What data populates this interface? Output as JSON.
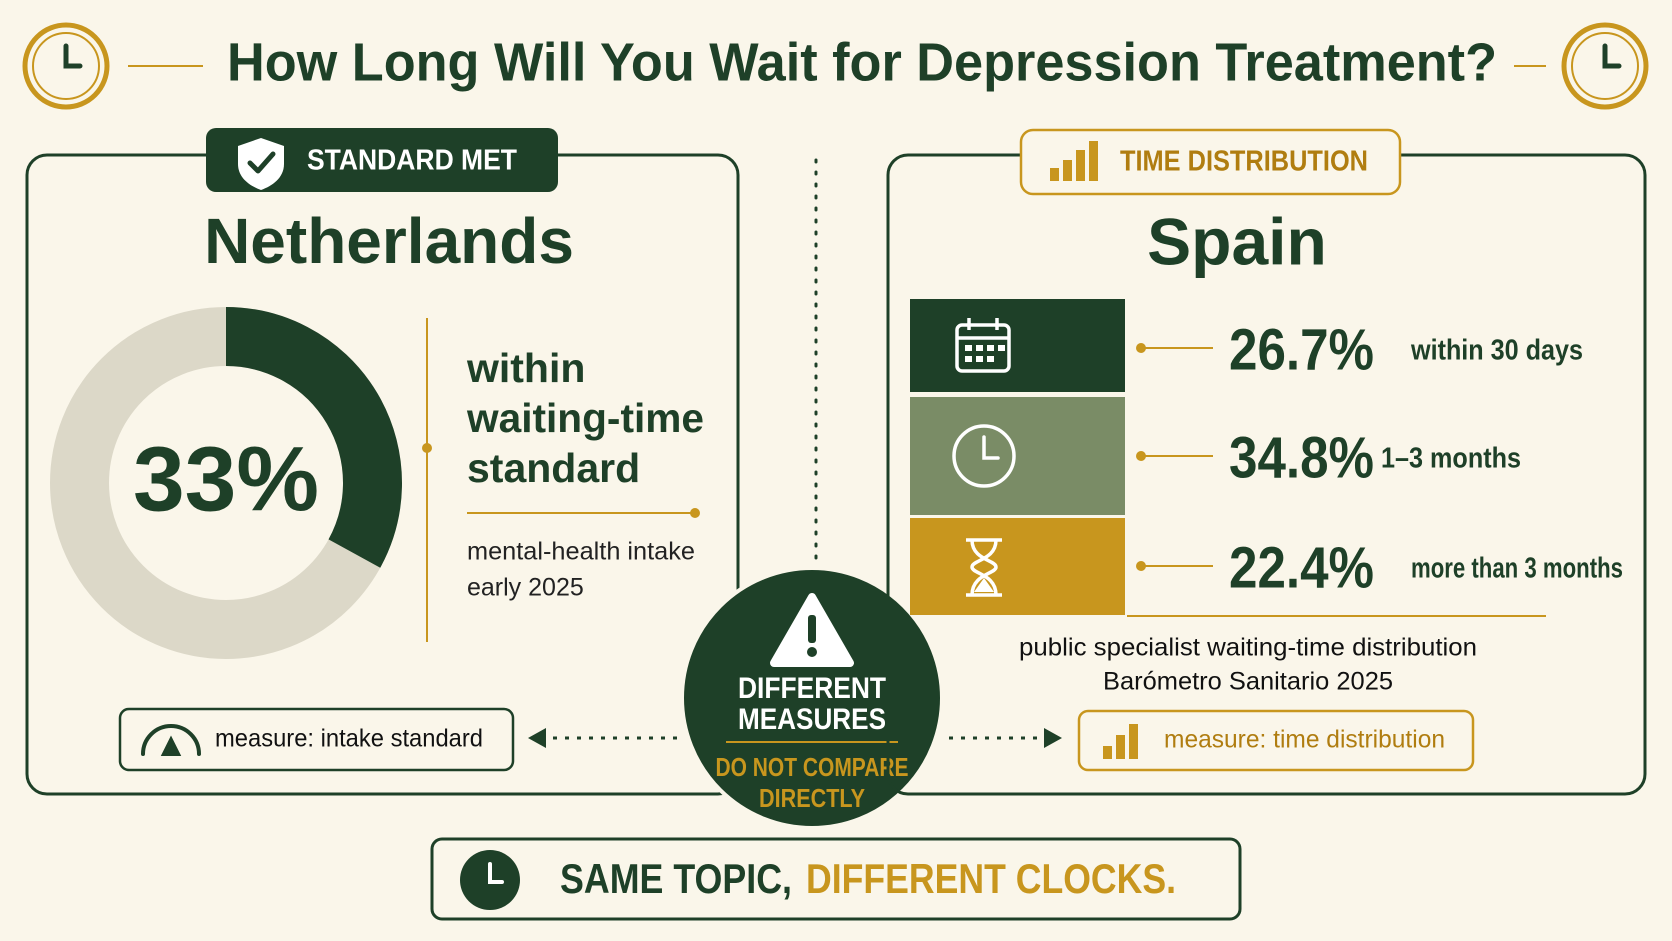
{
  "header": {
    "title": "How Long Will You Wait for Depression Treatment?"
  },
  "netherlands": {
    "badge": "STANDARD MET",
    "country": "Netherlands",
    "value": 33,
    "value_label": "33%",
    "description_lines": [
      "within",
      "waiting-time",
      "standard"
    ],
    "note_lines": [
      "mental-health intake",
      "early 2025"
    ],
    "measure": "measure: intake standard"
  },
  "center": {
    "lines": [
      "DIFFERENT",
      "MEASURES"
    ],
    "warning_lines": [
      "DO NOT COMPARE",
      "DIRECTLY"
    ]
  },
  "spain": {
    "badge": "TIME DISTRIBUTION",
    "country": "Spain",
    "rows": [
      {
        "value_label": "26.7%",
        "label": "within 30 days"
      },
      {
        "value_label": "34.8%",
        "label": "1–3 months"
      },
      {
        "value_label": "22.4%",
        "label": "more than 3 months"
      }
    ],
    "note_lines": [
      "public specialist waiting-time distribution",
      "Barómetro Sanitario 2025"
    ],
    "measure": "measure: time distribution"
  },
  "footer": {
    "text_parts": [
      "SAME TOPIC,",
      "DIFFERENT CLOCKS."
    ]
  }
}
